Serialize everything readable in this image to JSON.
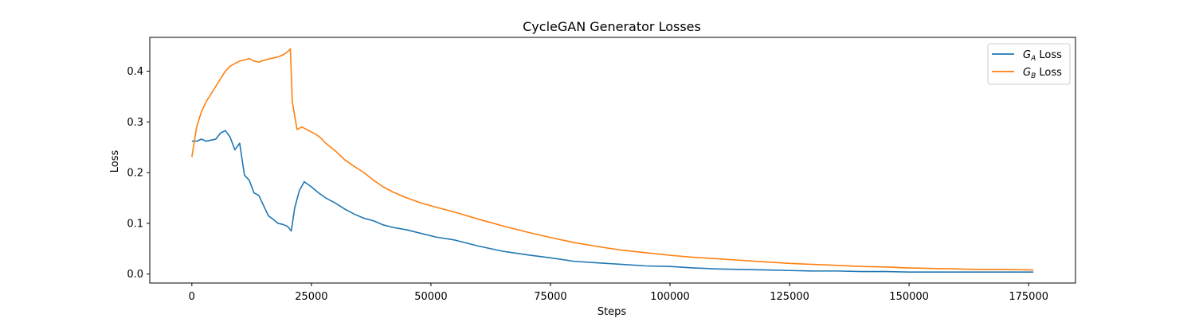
{
  "chart_data": {
    "type": "line",
    "title": "CycleGAN Generator Losses",
    "xlabel": "Steps",
    "ylabel": "Loss",
    "xlim": [
      -8800,
      184800
    ],
    "ylim": [
      -0.0177,
      0.4667
    ],
    "xticks": [
      0,
      25000,
      50000,
      75000,
      100000,
      125000,
      150000,
      175000
    ],
    "xtick_labels": [
      "0",
      "25000",
      "50000",
      "75000",
      "100000",
      "125000",
      "150000",
      "175000"
    ],
    "yticks": [
      0.0,
      0.1,
      0.2,
      0.3,
      0.4
    ],
    "ytick_labels": [
      "0.0",
      "0.1",
      "0.2",
      "0.3",
      "0.4"
    ],
    "grid": false,
    "legend_position": "top-right",
    "series": [
      {
        "name": "GA Loss",
        "legend_main": "G",
        "legend_sub": "A",
        "legend_suffix": " Loss",
        "color": "#1f77b4",
        "x": [
          0,
          1000,
          2000,
          3000,
          4000,
          5000,
          6000,
          7000,
          8000,
          9000,
          10000,
          11000,
          12000,
          13000,
          14000,
          15000,
          16000,
          17000,
          18000,
          19000,
          20000,
          20800,
          21500,
          22500,
          23500,
          25000,
          26500,
          28000,
          30000,
          32000,
          34000,
          36000,
          38000,
          40000,
          42000,
          45000,
          48000,
          51000,
          55000,
          60000,
          65000,
          70000,
          75000,
          80000,
          85000,
          90000,
          95000,
          100000,
          105000,
          110000,
          115000,
          120000,
          125000,
          130000,
          135000,
          140000,
          145000,
          150000,
          155000,
          160000,
          165000,
          170000,
          176000
        ],
        "y": [
          0.262,
          0.262,
          0.266,
          0.262,
          0.264,
          0.266,
          0.278,
          0.283,
          0.27,
          0.245,
          0.258,
          0.195,
          0.185,
          0.16,
          0.155,
          0.135,
          0.115,
          0.108,
          0.1,
          0.098,
          0.094,
          0.085,
          0.13,
          0.165,
          0.182,
          0.172,
          0.16,
          0.15,
          0.14,
          0.128,
          0.118,
          0.11,
          0.105,
          0.097,
          0.092,
          0.087,
          0.08,
          0.073,
          0.067,
          0.055,
          0.045,
          0.038,
          0.032,
          0.025,
          0.022,
          0.019,
          0.016,
          0.015,
          0.012,
          0.01,
          0.009,
          0.008,
          0.007,
          0.006,
          0.006,
          0.005,
          0.005,
          0.004,
          0.004,
          0.004,
          0.004,
          0.004,
          0.004
        ]
      },
      {
        "name": "GB Loss",
        "legend_main": "G",
        "legend_sub": "B",
        "legend_suffix": " Loss",
        "color": "#ff7f0e",
        "x": [
          0,
          1000,
          2000,
          3000,
          4000,
          5000,
          6000,
          7000,
          8000,
          9000,
          10000,
          11000,
          12000,
          13000,
          14000,
          15000,
          16000,
          17000,
          18000,
          19000,
          20000,
          20600,
          21000,
          22000,
          23000,
          24000,
          25000,
          26000,
          27000,
          28000,
          30000,
          32000,
          34000,
          36000,
          38000,
          40000,
          42000,
          45000,
          48000,
          51000,
          55000,
          60000,
          65000,
          70000,
          75000,
          80000,
          85000,
          90000,
          95000,
          100000,
          105000,
          110000,
          115000,
          120000,
          125000,
          130000,
          135000,
          140000,
          145000,
          150000,
          155000,
          160000,
          165000,
          170000,
          176000
        ],
        "y": [
          0.231,
          0.29,
          0.32,
          0.34,
          0.355,
          0.37,
          0.385,
          0.4,
          0.41,
          0.415,
          0.42,
          0.422,
          0.425,
          0.42,
          0.418,
          0.421,
          0.424,
          0.426,
          0.428,
          0.432,
          0.438,
          0.444,
          0.34,
          0.285,
          0.29,
          0.285,
          0.28,
          0.275,
          0.268,
          0.258,
          0.243,
          0.225,
          0.212,
          0.2,
          0.185,
          0.172,
          0.162,
          0.15,
          0.14,
          0.132,
          0.122,
          0.108,
          0.095,
          0.083,
          0.072,
          0.062,
          0.054,
          0.047,
          0.042,
          0.037,
          0.033,
          0.03,
          0.027,
          0.024,
          0.021,
          0.019,
          0.017,
          0.015,
          0.014,
          0.012,
          0.011,
          0.01,
          0.009,
          0.009,
          0.008
        ]
      }
    ]
  }
}
